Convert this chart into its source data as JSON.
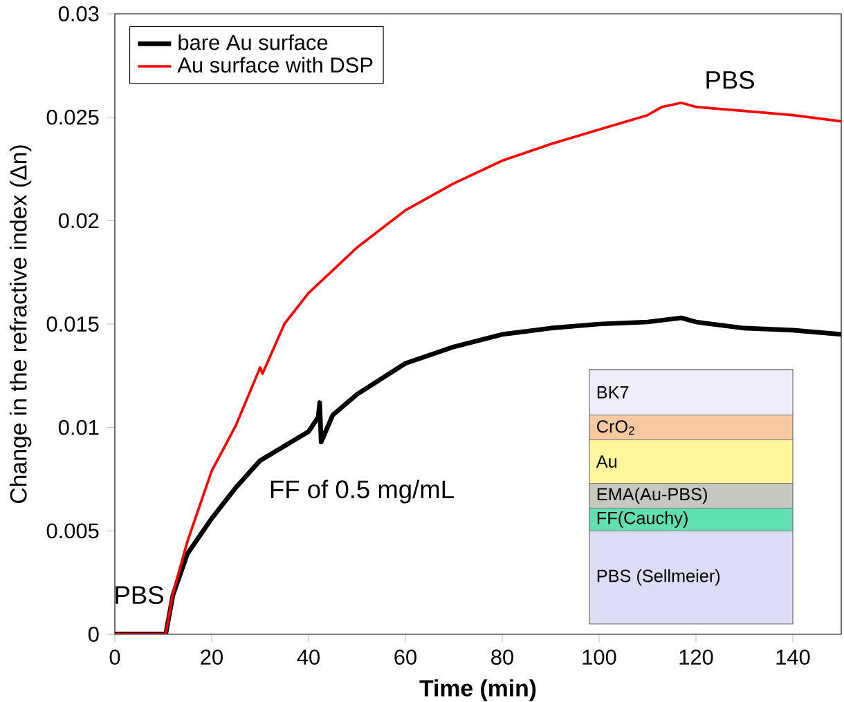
{
  "chart_data": {
    "type": "line",
    "xlabel": "Time (min)",
    "ylabel": "Change in the refractive index (Δn)",
    "xlim": [
      0,
      150
    ],
    "xticks": [
      0,
      20,
      40,
      60,
      80,
      100,
      120,
      140
    ],
    "ylim": [
      0,
      0.03
    ],
    "yticks": [
      0,
      0.005,
      0.01,
      0.015,
      0.02,
      0.025,
      0.03
    ],
    "legend": "top left",
    "marker": "none",
    "line_style": "solid",
    "grid": false,
    "annotations": [
      "PBS",
      "FF of 0.5 mg/mL",
      "PBS",
      "BK7",
      "CrO$_{2}$",
      "Au",
      "EMA(Au-PBS)",
      "FF(Cauchy)",
      "PBS (Sellmeier)"
    ],
    "series": [
      {
        "name": "bare Au surface",
        "color": "#000000",
        "x": [
          0,
          10.5,
          12,
          15,
          20,
          25,
          30,
          35,
          40,
          42,
          42.3,
          42.6,
          45,
          50,
          60,
          70,
          80,
          90,
          100,
          110,
          117,
          120,
          130,
          140,
          150
        ],
        "values": [
          0,
          0,
          0.0019,
          0.0039,
          0.0056,
          0.0071,
          0.0084,
          0.0091,
          0.0098,
          0.0105,
          0.0112,
          0.0093,
          0.0106,
          0.0116,
          0.0131,
          0.0139,
          0.0145,
          0.0148,
          0.015,
          0.0151,
          0.0153,
          0.0151,
          0.0148,
          0.0147,
          0.0145
        ]
      },
      {
        "name": "Au surface with DSP",
        "color": "#ff0000",
        "x": [
          0,
          10.5,
          12,
          15,
          20,
          25,
          30,
          30.5,
          35,
          40,
          50,
          60,
          70,
          80,
          90,
          100,
          110,
          113,
          117,
          120,
          130,
          140,
          150
        ],
        "values": [
          0,
          0,
          0.002,
          0.0045,
          0.0079,
          0.0101,
          0.0129,
          0.0126,
          0.015,
          0.0165,
          0.0187,
          0.0205,
          0.0218,
          0.0229,
          0.0237,
          0.0244,
          0.0251,
          0.0255,
          0.0257,
          0.0255,
          0.0253,
          0.0251,
          0.0248
        ]
      }
    ]
  }
}
